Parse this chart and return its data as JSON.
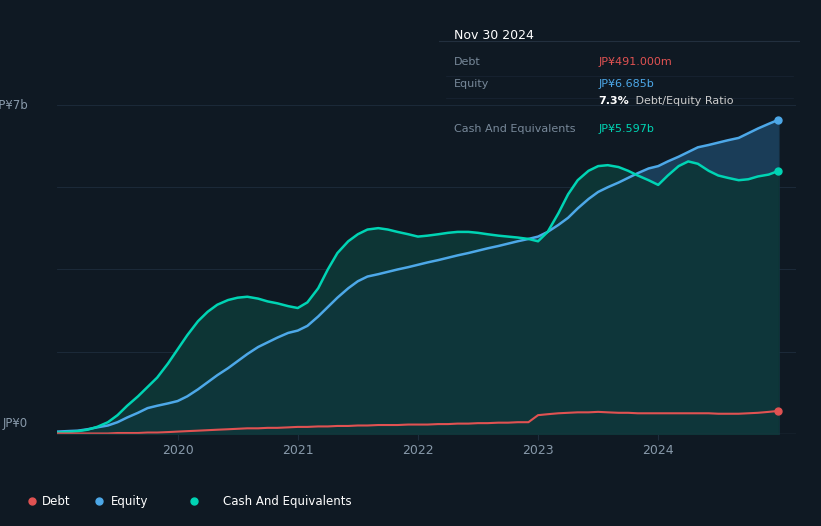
{
  "bg_color": "#0f1923",
  "chart_bg": "#0f1923",
  "debt_color": "#e05252",
  "equity_color": "#4da8e8",
  "cash_color": "#00d4b4",
  "fill_equity_color": "#1a3d5c",
  "fill_cash_color": "#0d3535",
  "grid_color": "#1e2d3d",
  "text_color": "#8899aa",
  "x_tick_labels": [
    "2020",
    "2021",
    "2022",
    "2023",
    "2024"
  ],
  "x_ticks": [
    2020,
    2021,
    2022,
    2023,
    2024
  ],
  "ylim": [
    0,
    7.5
  ],
  "xlim": [
    2019.0,
    2025.15
  ],
  "years": [
    2019.0,
    2019.08,
    2019.17,
    2019.25,
    2019.33,
    2019.42,
    2019.5,
    2019.58,
    2019.67,
    2019.75,
    2019.83,
    2019.92,
    2020.0,
    2020.08,
    2020.17,
    2020.25,
    2020.33,
    2020.42,
    2020.5,
    2020.58,
    2020.67,
    2020.75,
    2020.83,
    2020.92,
    2021.0,
    2021.08,
    2021.17,
    2021.25,
    2021.33,
    2021.42,
    2021.5,
    2021.58,
    2021.67,
    2021.75,
    2021.83,
    2021.92,
    2022.0,
    2022.08,
    2022.17,
    2022.25,
    2022.33,
    2022.42,
    2022.5,
    2022.58,
    2022.67,
    2022.75,
    2022.83,
    2022.92,
    2023.0,
    2023.08,
    2023.17,
    2023.25,
    2023.33,
    2023.42,
    2023.5,
    2023.58,
    2023.67,
    2023.75,
    2023.83,
    2023.92,
    2024.0,
    2024.08,
    2024.17,
    2024.25,
    2024.33,
    2024.42,
    2024.5,
    2024.58,
    2024.67,
    2024.75,
    2024.83,
    2024.92,
    2025.0
  ],
  "debt": [
    0.01,
    0.01,
    0.01,
    0.01,
    0.01,
    0.01,
    0.02,
    0.02,
    0.02,
    0.03,
    0.03,
    0.04,
    0.05,
    0.06,
    0.07,
    0.08,
    0.09,
    0.1,
    0.11,
    0.12,
    0.12,
    0.13,
    0.13,
    0.14,
    0.15,
    0.15,
    0.16,
    0.16,
    0.17,
    0.17,
    0.18,
    0.18,
    0.19,
    0.19,
    0.19,
    0.2,
    0.2,
    0.2,
    0.21,
    0.21,
    0.22,
    0.22,
    0.23,
    0.23,
    0.24,
    0.24,
    0.25,
    0.25,
    0.4,
    0.42,
    0.44,
    0.45,
    0.46,
    0.46,
    0.47,
    0.46,
    0.45,
    0.45,
    0.44,
    0.44,
    0.44,
    0.44,
    0.44,
    0.44,
    0.44,
    0.44,
    0.43,
    0.43,
    0.43,
    0.44,
    0.45,
    0.47,
    0.49
  ],
  "equity": [
    0.05,
    0.06,
    0.07,
    0.1,
    0.14,
    0.18,
    0.25,
    0.35,
    0.45,
    0.55,
    0.6,
    0.65,
    0.7,
    0.8,
    0.95,
    1.1,
    1.25,
    1.4,
    1.55,
    1.7,
    1.85,
    1.95,
    2.05,
    2.15,
    2.2,
    2.3,
    2.5,
    2.7,
    2.9,
    3.1,
    3.25,
    3.35,
    3.4,
    3.45,
    3.5,
    3.55,
    3.6,
    3.65,
    3.7,
    3.75,
    3.8,
    3.85,
    3.9,
    3.95,
    4.0,
    4.05,
    4.1,
    4.15,
    4.2,
    4.3,
    4.45,
    4.6,
    4.8,
    5.0,
    5.15,
    5.25,
    5.35,
    5.45,
    5.55,
    5.65,
    5.7,
    5.8,
    5.9,
    6.0,
    6.1,
    6.15,
    6.2,
    6.25,
    6.3,
    6.4,
    6.5,
    6.6,
    6.685
  ],
  "cash": [
    0.03,
    0.04,
    0.06,
    0.09,
    0.15,
    0.25,
    0.4,
    0.6,
    0.8,
    1.0,
    1.2,
    1.5,
    1.8,
    2.1,
    2.4,
    2.6,
    2.75,
    2.85,
    2.9,
    2.92,
    2.88,
    2.82,
    2.78,
    2.72,
    2.68,
    2.8,
    3.1,
    3.5,
    3.85,
    4.1,
    4.25,
    4.35,
    4.38,
    4.35,
    4.3,
    4.25,
    4.2,
    4.22,
    4.25,
    4.28,
    4.3,
    4.3,
    4.28,
    4.25,
    4.22,
    4.2,
    4.18,
    4.15,
    4.1,
    4.3,
    4.7,
    5.1,
    5.4,
    5.6,
    5.7,
    5.72,
    5.68,
    5.6,
    5.5,
    5.4,
    5.3,
    5.5,
    5.7,
    5.8,
    5.75,
    5.6,
    5.5,
    5.45,
    5.4,
    5.42,
    5.48,
    5.52,
    5.597
  ],
  "legend_items": [
    {
      "label": "Debt",
      "color": "#e05252"
    },
    {
      "label": "Equity",
      "color": "#4da8e8"
    },
    {
      "label": "Cash And Equivalents",
      "color": "#00d4b4"
    }
  ],
  "info_box": {
    "title": "Nov 30 2024",
    "rows": [
      {
        "label": "Debt",
        "value": "JP¥491.000m",
        "value_color": "#e05252"
      },
      {
        "label": "Equity",
        "value": "JP¥6.685b",
        "value_color": "#4da8e8"
      },
      {
        "label": "",
        "value": "7.3%",
        "value2": " Debt/Equity Ratio"
      },
      {
        "label": "Cash And Equivalents",
        "value": "JP¥5.597b",
        "value_color": "#00d4b4"
      }
    ]
  }
}
